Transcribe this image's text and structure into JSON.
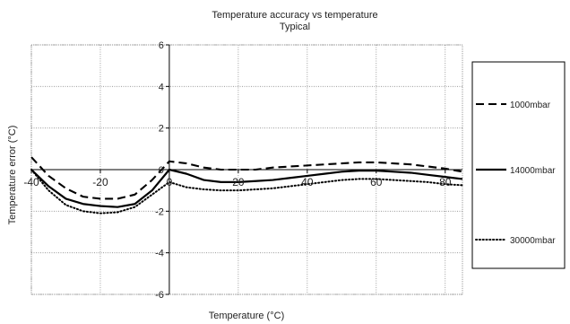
{
  "chart_data": {
    "type": "line",
    "title": "Temperature accuracy vs temperature",
    "subtitle": "Typical",
    "xlabel": "Temperature (°C)",
    "ylabel": "Temperature error (°C)",
    "xlim": [
      -40,
      85
    ],
    "ylim": [
      -6,
      6
    ],
    "x_ticks": [
      -40,
      -20,
      0,
      20,
      40,
      60,
      80
    ],
    "x_tick_labels": [
      "-40",
      "-20",
      "0",
      "20",
      "40",
      "60",
      "80"
    ],
    "y_ticks": [
      -6,
      -4,
      -2,
      0,
      2,
      4,
      6
    ],
    "y_tick_labels": [
      "-6",
      "-4",
      "-2",
      "0",
      "2",
      "4",
      "6"
    ],
    "grid": true,
    "legend_position": "right",
    "series": [
      {
        "name": "1000mbar",
        "style": "dashed",
        "x": [
          -40,
          -35,
          -30,
          -25,
          -20,
          -15,
          -10,
          -5,
          0,
          5,
          10,
          15,
          20,
          25,
          30,
          35,
          40,
          45,
          50,
          55,
          60,
          65,
          70,
          75,
          80,
          85
        ],
        "y": [
          0.6,
          -0.3,
          -0.9,
          -1.3,
          -1.4,
          -1.4,
          -1.2,
          -0.5,
          0.4,
          0.3,
          0.1,
          0.0,
          0.0,
          0.0,
          0.1,
          0.15,
          0.2,
          0.25,
          0.3,
          0.35,
          0.35,
          0.3,
          0.25,
          0.15,
          0.05,
          -0.1
        ]
      },
      {
        "name": "14000mbar",
        "style": "solid",
        "x": [
          -40,
          -35,
          -30,
          -25,
          -20,
          -15,
          -10,
          -5,
          0,
          5,
          10,
          15,
          20,
          25,
          30,
          35,
          40,
          45,
          50,
          55,
          60,
          65,
          70,
          75,
          80,
          85
        ],
        "y": [
          0.0,
          -0.8,
          -1.4,
          -1.65,
          -1.75,
          -1.8,
          -1.65,
          -1.0,
          0.0,
          -0.2,
          -0.5,
          -0.6,
          -0.6,
          -0.55,
          -0.5,
          -0.4,
          -0.3,
          -0.2,
          -0.1,
          -0.05,
          -0.05,
          -0.1,
          -0.15,
          -0.25,
          -0.35,
          -0.45
        ]
      },
      {
        "name": "30000mbar",
        "style": "dotted",
        "x": [
          -40,
          -35,
          -30,
          -25,
          -20,
          -15,
          -10,
          -5,
          0,
          5,
          10,
          15,
          20,
          25,
          30,
          35,
          40,
          45,
          50,
          55,
          60,
          65,
          70,
          75,
          80,
          85
        ],
        "y": [
          0.0,
          -1.0,
          -1.7,
          -2.0,
          -2.1,
          -2.05,
          -1.8,
          -1.2,
          -0.6,
          -0.85,
          -0.95,
          -1.0,
          -1.0,
          -0.95,
          -0.9,
          -0.8,
          -0.7,
          -0.6,
          -0.5,
          -0.45,
          -0.45,
          -0.5,
          -0.55,
          -0.6,
          -0.7,
          -0.75
        ]
      }
    ]
  }
}
